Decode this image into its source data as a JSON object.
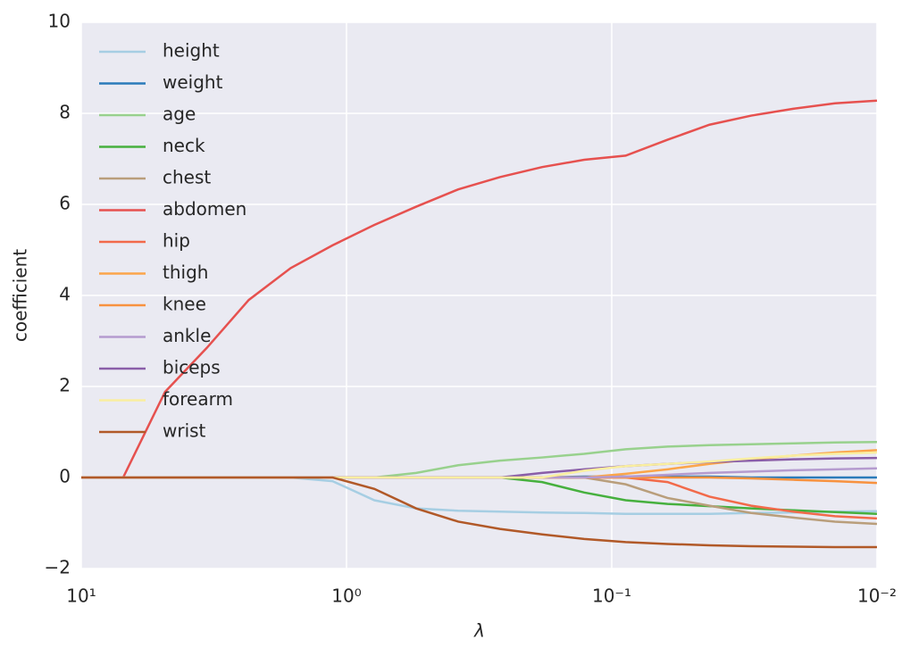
{
  "chart_data": {
    "type": "line",
    "xlabel": "λ",
    "ylabel": "coefficient",
    "x": [
      10,
      6.952,
      4.833,
      3.36,
      2.336,
      1.624,
      1.129,
      0.785,
      0.546,
      0.379,
      0.264,
      0.183,
      0.127,
      0.0886,
      0.0616,
      0.0428,
      0.0298,
      0.0207,
      0.0144,
      0.01
    ],
    "xscale": "log",
    "xlim": [
      10,
      0.01
    ],
    "xticks": [
      {
        "value": 10,
        "label": "10¹"
      },
      {
        "value": 1,
        "label": "10⁰"
      },
      {
        "value": 0.1,
        "label": "10⁻¹"
      },
      {
        "value": 0.01,
        "label": "10⁻²"
      }
    ],
    "ylim": [
      -2,
      10
    ],
    "yticks": [
      {
        "value": -2,
        "label": "−2"
      },
      0,
      2,
      4,
      6,
      8,
      10
    ],
    "grid": true,
    "legend": "upper left",
    "series": [
      {
        "name": "height",
        "color": "#a6cee3",
        "values": [
          0,
          0,
          0,
          0,
          0,
          0,
          -0.08,
          -0.5,
          -0.68,
          -0.73,
          -0.75,
          -0.77,
          -0.78,
          -0.8,
          -0.8,
          -0.8,
          -0.78,
          -0.77,
          -0.75,
          -0.74
        ]
      },
      {
        "name": "weight",
        "color": "#2b7bba",
        "values": [
          0,
          0,
          0,
          0,
          0,
          0,
          0,
          0,
          0,
          0,
          0,
          0,
          0.02,
          0.02,
          0.02,
          0.02,
          0,
          0,
          0,
          0
        ]
      },
      {
        "name": "age",
        "color": "#98d18d",
        "values": [
          0,
          0,
          0,
          0,
          0,
          0,
          0,
          0,
          0.1,
          0.27,
          0.37,
          0.44,
          0.52,
          0.62,
          0.68,
          0.71,
          0.73,
          0.75,
          0.77,
          0.78
        ]
      },
      {
        "name": "neck",
        "color": "#46b03e",
        "values": [
          0,
          0,
          0,
          0,
          0,
          0,
          0,
          0,
          0,
          0,
          0,
          -0.1,
          -0.33,
          -0.5,
          -0.58,
          -0.63,
          -0.68,
          -0.72,
          -0.76,
          -0.8
        ]
      },
      {
        "name": "chest",
        "color": "#b99e7b",
        "values": [
          0,
          0,
          0,
          0,
          0,
          0,
          0,
          0,
          0,
          0,
          0,
          0,
          0,
          -0.15,
          -0.45,
          -0.62,
          -0.78,
          -0.88,
          -0.97,
          -1.02
        ]
      },
      {
        "name": "abdomen",
        "color": "#e6514f",
        "values": [
          0,
          0,
          1.88,
          2.85,
          3.9,
          4.6,
          5.1,
          5.55,
          5.95,
          6.33,
          6.6,
          6.82,
          6.98,
          7.07,
          7.42,
          7.75,
          7.95,
          8.1,
          8.22,
          8.28
        ]
      },
      {
        "name": "hip",
        "color": "#f26a4a",
        "values": [
          0,
          0,
          0,
          0,
          0,
          0,
          0,
          0,
          0,
          0,
          0,
          0,
          0,
          0,
          -0.1,
          -0.42,
          -0.62,
          -0.75,
          -0.85,
          -0.9
        ]
      },
      {
        "name": "thigh",
        "color": "#fba54a",
        "values": [
          0,
          0,
          0,
          0,
          0,
          0,
          0,
          0,
          0,
          0,
          0,
          0,
          0,
          0.08,
          0.18,
          0.3,
          0.4,
          0.48,
          0.55,
          0.6
        ]
      },
      {
        "name": "knee",
        "color": "#f8923f",
        "values": [
          0,
          0,
          0,
          0,
          0,
          0,
          0,
          0,
          0,
          0,
          0,
          0,
          0,
          0,
          0,
          0,
          -0.02,
          -0.05,
          -0.08,
          -0.12
        ]
      },
      {
        "name": "ankle",
        "color": "#b59bcf",
        "values": [
          0,
          0,
          0,
          0,
          0,
          0,
          0,
          0,
          0,
          0,
          0,
          0,
          0,
          0.02,
          0.06,
          0.1,
          0.13,
          0.16,
          0.18,
          0.2
        ]
      },
      {
        "name": "biceps",
        "color": "#8a5ea8",
        "values": [
          0,
          0,
          0,
          0,
          0,
          0,
          0,
          0,
          0,
          0,
          0,
          0.1,
          0.18,
          0.25,
          0.3,
          0.34,
          0.37,
          0.4,
          0.42,
          0.43
        ]
      },
      {
        "name": "forearm",
        "color": "#f9eea0",
        "values": [
          0,
          0,
          0,
          0,
          0,
          0,
          0,
          0,
          0,
          0,
          0,
          0,
          0.15,
          0.25,
          0.3,
          0.35,
          0.42,
          0.48,
          0.52,
          0.55
        ]
      },
      {
        "name": "wrist",
        "color": "#b15928",
        "values": [
          0,
          0,
          0,
          0,
          0,
          0,
          0,
          -0.25,
          -0.68,
          -0.97,
          -1.13,
          -1.25,
          -1.35,
          -1.42,
          -1.46,
          -1.49,
          -1.51,
          -1.52,
          -1.53,
          -1.53
        ]
      }
    ]
  }
}
